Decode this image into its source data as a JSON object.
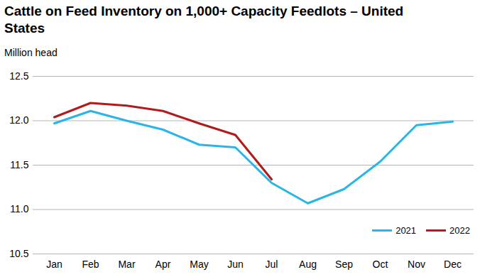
{
  "chart_data": {
    "type": "line",
    "title": "Cattle on Feed Inventory on 1,000+ Capacity Feedlots – United States",
    "y_label": "Million head",
    "categories": [
      "Jan",
      "Feb",
      "Mar",
      "Apr",
      "May",
      "Jun",
      "Jul",
      "Aug",
      "Sep",
      "Oct",
      "Nov",
      "Dec"
    ],
    "series": [
      {
        "name": "2021",
        "color": "#29b5e8",
        "values": [
          11.97,
          12.11,
          12.0,
          11.9,
          11.73,
          11.7,
          11.3,
          11.07,
          11.23,
          11.54,
          11.95,
          11.99
        ]
      },
      {
        "name": "2022",
        "color": "#b01c1c",
        "values": [
          12.04,
          12.2,
          12.17,
          12.11,
          11.97,
          11.84,
          11.34,
          null,
          null,
          null,
          null,
          null
        ]
      }
    ],
    "ylim": [
      10.5,
      12.5
    ],
    "yticks": [
      10.5,
      {
        "value": 11,
        "label": "11.0"
      },
      11.5,
      {
        "value": 12,
        "label": "12.0"
      },
      12.5
    ],
    "grid": true,
    "legend": "bottom-right"
  }
}
